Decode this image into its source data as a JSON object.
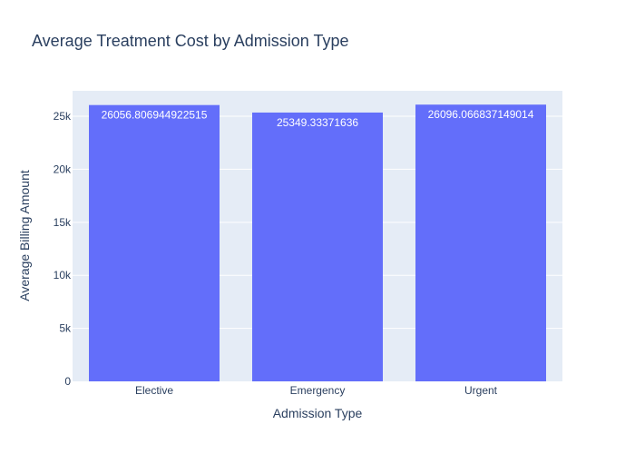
{
  "chart_data": {
    "type": "bar",
    "title": "Average Treatment Cost by Admission Type",
    "xlabel": "Admission Type",
    "ylabel": "Average Billing Amount",
    "categories": [
      "Elective",
      "Emergency",
      "Urgent"
    ],
    "values": [
      26056.806944922515,
      25349.33371636,
      26096.066837149014
    ],
    "data_labels": [
      "26056.806944922515",
      "25349.33371636",
      "26096.066837149014"
    ],
    "ylim": [
      0,
      27400
    ],
    "yticks": [
      0,
      5000,
      10000,
      15000,
      20000,
      25000
    ],
    "ytick_labels": [
      "0",
      "5k",
      "10k",
      "15k",
      "20k",
      "25k"
    ],
    "grid": true,
    "legend": false,
    "colors": {
      "bar": "#636efa",
      "plot_bg": "#e5ecf6",
      "grid": "#ffffff",
      "text": "#2a3f5f"
    }
  }
}
